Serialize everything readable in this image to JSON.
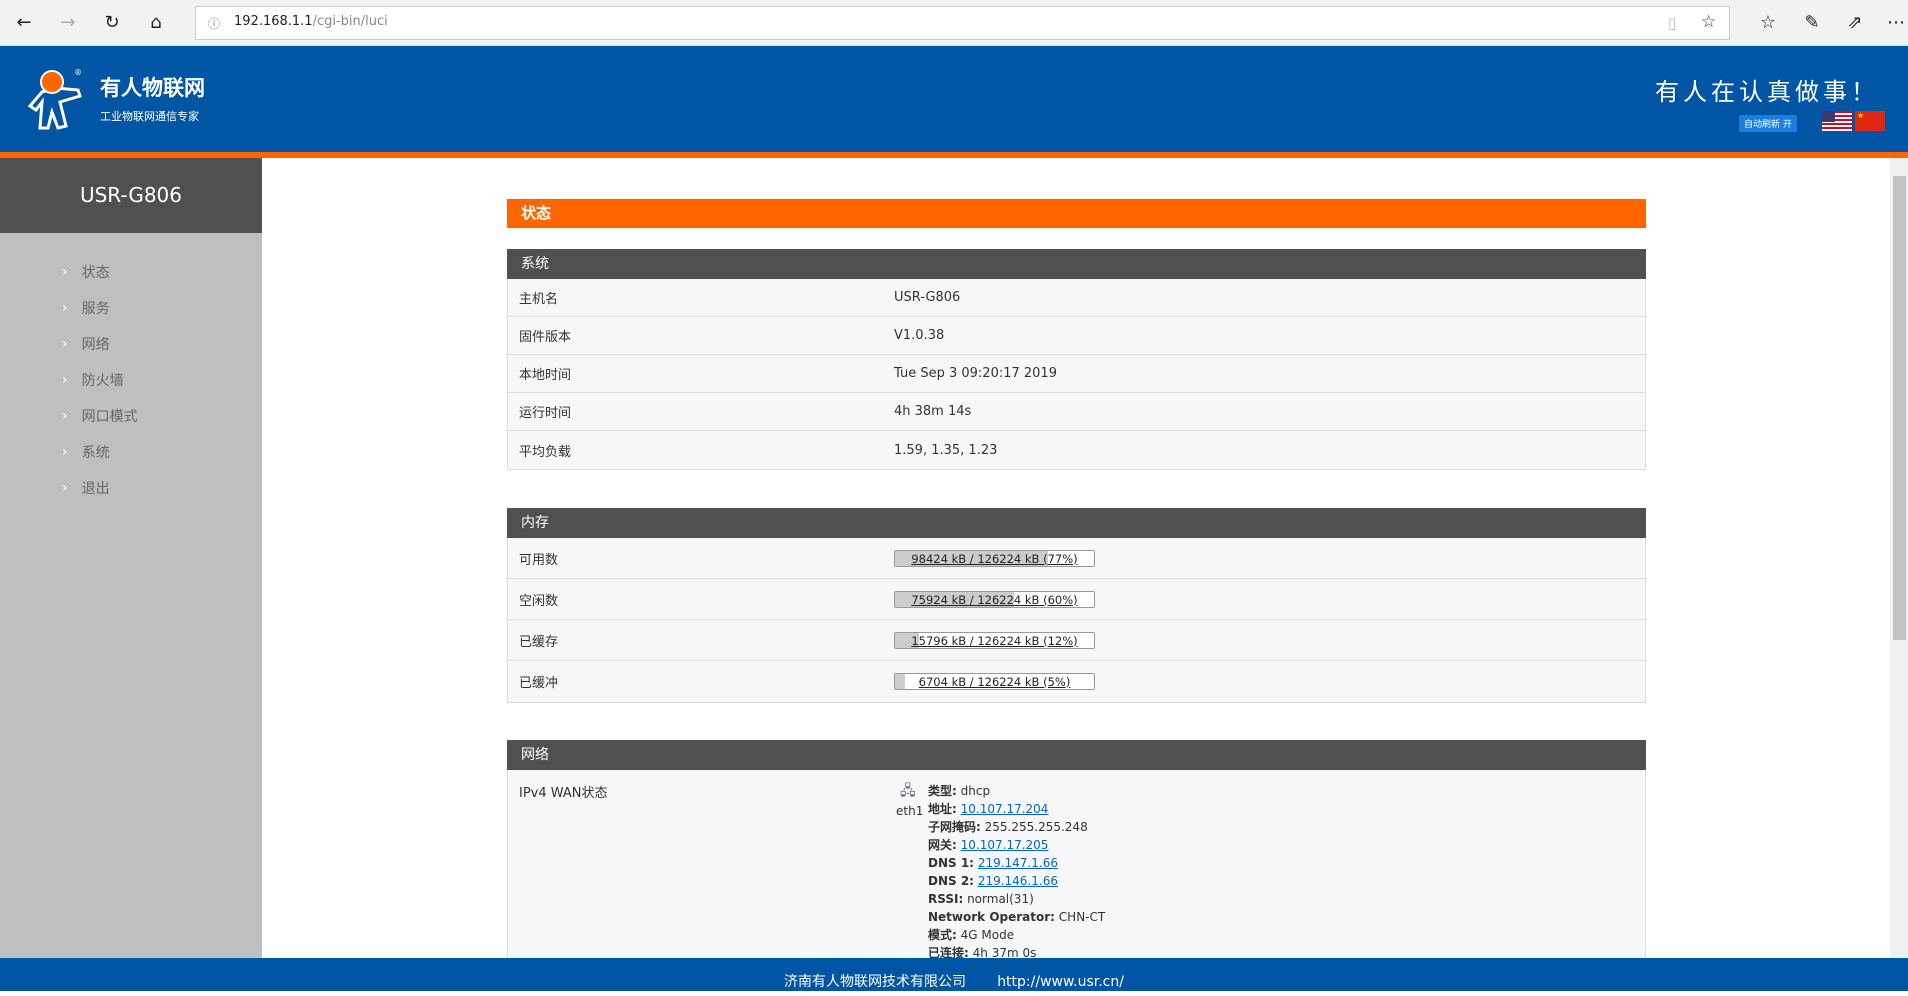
{
  "browser": {
    "url_host": "192.168.1.1",
    "url_path": "/cgi-bin/luci"
  },
  "header": {
    "brand": "有人物联网",
    "tagline": "工业物联网通信专家",
    "slogan": "有人在认真做事！",
    "auto_refresh": "自动刷新 开",
    "registered": "®"
  },
  "sidebar": {
    "title": "USR-G806",
    "items": [
      {
        "label": "状态"
      },
      {
        "label": "服务"
      },
      {
        "label": "网络"
      },
      {
        "label": "防火墙"
      },
      {
        "label": "网口模式"
      },
      {
        "label": "系统"
      },
      {
        "label": "退出"
      }
    ]
  },
  "page": {
    "title": "状态"
  },
  "system": {
    "heading": "系统",
    "rows": [
      {
        "label": "主机名",
        "value": "USR-G806"
      },
      {
        "label": "固件版本",
        "value": "V1.0.38"
      },
      {
        "label": "本地时间",
        "value": "Tue Sep 3 09:20:17 2019"
      },
      {
        "label": "运行时间",
        "value": "4h 38m 14s"
      },
      {
        "label": "平均负载",
        "value": "1.59, 1.35, 1.23"
      }
    ]
  },
  "memory": {
    "heading": "内存",
    "rows": [
      {
        "label": "可用数",
        "text": "98424 kB / 126224 kB (77%)",
        "percent": 77
      },
      {
        "label": "空闲数",
        "text": "75924 kB / 126224 kB (60%)",
        "percent": 60
      },
      {
        "label": "已缓存",
        "text": "15796 kB / 126224 kB (12%)",
        "percent": 12
      },
      {
        "label": "已缓冲",
        "text": "6704 kB / 126224 kB (5%)",
        "percent": 5
      }
    ]
  },
  "network": {
    "heading": "网络",
    "wan_label": "IPv4 WAN状态",
    "iface": "eth1",
    "details": [
      {
        "k": "类型:",
        "v": "dhcp",
        "link": false
      },
      {
        "k": "地址:",
        "v": "10.107.17.204",
        "link": true
      },
      {
        "k": "子网掩码:",
        "v": "255.255.255.248",
        "link": false
      },
      {
        "k": "网关:",
        "v": "10.107.17.205",
        "link": true
      },
      {
        "k": "DNS 1:",
        "v": "219.147.1.66",
        "link": true
      },
      {
        "k": "DNS 2:",
        "v": "219.146.1.66",
        "link": true
      },
      {
        "k": "RSSI:",
        "v": "normal(31)",
        "link": false
      },
      {
        "k": "Network Operator:",
        "v": "CHN-CT",
        "link": false
      },
      {
        "k": "模式:",
        "v": "4G Mode",
        "link": false
      },
      {
        "k": "已连接:",
        "v": "4h 37m 0s",
        "link": false
      }
    ]
  },
  "footer": {
    "company": "济南有人物联网技术有限公司",
    "website": "http://www.usr.cn/"
  },
  "colors": {
    "header_blue": "#0055a5",
    "accent_orange": "#ff6600",
    "section_dark": "#505050",
    "sidebar_gray": "#bfbfbf"
  }
}
